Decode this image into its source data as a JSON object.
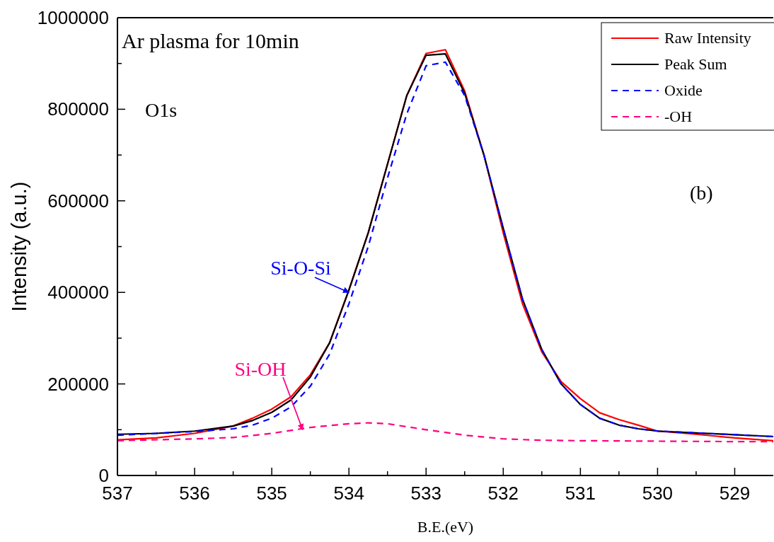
{
  "chart_data": {
    "type": "line",
    "title": "Ar plasma for 10min",
    "xlabel": "B.E.(eV)",
    "ylabel": "Intensity (a.u.)",
    "xlim": [
      537,
      528.5
    ],
    "xticks": [
      537,
      {
        "value": 536.5,
        "label": null
      },
      536,
      {
        "value": 535.5,
        "label": null
      },
      535,
      {
        "value": 534.5,
        "label": null
      },
      534,
      {
        "value": 533.5,
        "label": null
      },
      533,
      {
        "value": 532.5,
        "label": null
      },
      532,
      {
        "value": 531.5,
        "label": null
      },
      531,
      {
        "value": 530.5,
        "label": null
      },
      530,
      {
        "value": 529.5,
        "label": null
      },
      529
    ],
    "ylim": [
      0,
      1000000
    ],
    "yticks": [
      0,
      {
        "value": 100000,
        "label": null
      },
      200000,
      {
        "value": 300000,
        "label": null
      },
      400000,
      {
        "value": 500000,
        "label": null
      },
      600000,
      {
        "value": 700000,
        "label": null
      },
      800000,
      {
        "value": 900000,
        "label": null
      },
      1000000
    ],
    "grid": false,
    "legend": "top right",
    "marker": "none",
    "series": [
      {
        "name": "Raw Intensity",
        "color": "#ff0000",
        "line_style": "solid",
        "x": [
          537,
          536.5,
          536,
          535.5,
          535.25,
          535,
          534.75,
          534.5,
          534.25,
          534,
          533.75,
          533.5,
          533.25,
          533,
          532.75,
          532.5,
          532.25,
          532,
          531.75,
          531.5,
          531.25,
          531,
          530.75,
          530.5,
          530.25,
          530,
          529.5,
          529,
          528.5
        ],
        "values": [
          78000,
          82000,
          92000,
          108000,
          125000,
          145000,
          172000,
          220000,
          290000,
          405000,
          530000,
          680000,
          830000,
          922000,
          930000,
          840000,
          700000,
          530000,
          375000,
          270000,
          205000,
          168000,
          137000,
          122000,
          110000,
          97000,
          90000,
          82000,
          76000
        ]
      },
      {
        "name": "Peak Sum",
        "color": "#000000",
        "line_style": "solid",
        "x": [
          537,
          536.5,
          536,
          535.5,
          535.25,
          535,
          534.75,
          534.5,
          534.25,
          534,
          533.75,
          533.5,
          533.25,
          533,
          532.75,
          532.5,
          532.25,
          532,
          531.75,
          531.5,
          531.25,
          531,
          530.75,
          530.5,
          530.25,
          530,
          529.5,
          529,
          528.5
        ],
        "values": [
          90000,
          92000,
          97000,
          108000,
          120000,
          138000,
          165000,
          215000,
          290000,
          405000,
          530000,
          680000,
          830000,
          918000,
          921000,
          835000,
          700000,
          540000,
          385000,
          275000,
          200000,
          155000,
          125000,
          110000,
          102000,
          97000,
          93000,
          89000,
          85000
        ]
      },
      {
        "name": "Oxide",
        "color": "#0000ff",
        "line_style": "dashed",
        "x": [
          537,
          536,
          535.5,
          535.25,
          535,
          534.75,
          534.5,
          534.25,
          534,
          533.75,
          533.5,
          533.25,
          533,
          532.75,
          532.5,
          532.25,
          532,
          531.75,
          531.5,
          531.25,
          531,
          530.75,
          530.5,
          530.25,
          530,
          529.5,
          529,
          528.5
        ],
        "values": [
          88000,
          96000,
          102000,
          110000,
          125000,
          150000,
          195000,
          265000,
          375000,
          500000,
          650000,
          790000,
          895000,
          903000,
          830000,
          700000,
          540000,
          385000,
          275000,
          200000,
          155000,
          125000,
          110000,
          102000,
          97000,
          93000,
          89000,
          85000
        ]
      },
      {
        "name": "-OH",
        "color": "#ff0080",
        "line_style": "dashed",
        "x": [
          537,
          536,
          535.5,
          535,
          534.5,
          534,
          533.75,
          533.5,
          533,
          532.5,
          532,
          531.5,
          531,
          530,
          529,
          528.5
        ],
        "values": [
          76000,
          80000,
          83000,
          92000,
          105000,
          113000,
          115000,
          113000,
          100000,
          88000,
          80000,
          77000,
          76000,
          75000,
          74000,
          74000
        ]
      }
    ],
    "annotations": [
      "O1s",
      "(b)",
      {
        "text": "Si-O-Si",
        "x": 534,
        "y": 400000
      },
      {
        "text": "Si-OH",
        "x": 534.6,
        "y": 100000
      }
    ]
  }
}
